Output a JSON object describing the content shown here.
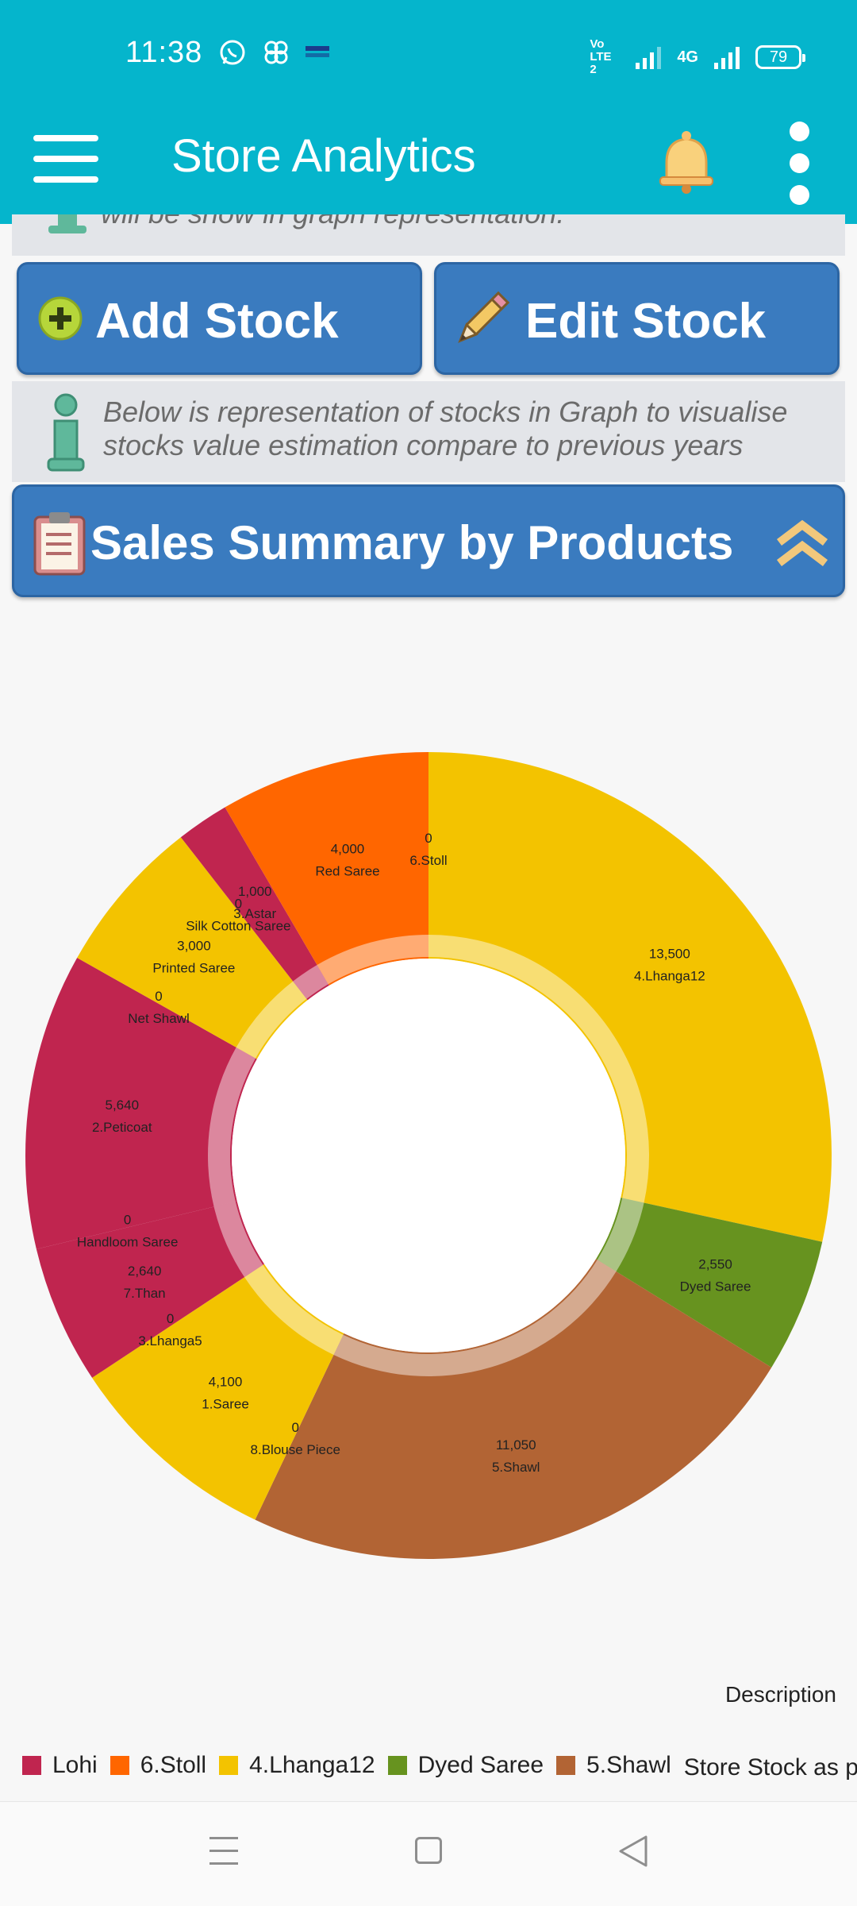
{
  "status_bar": {
    "time": "11:38",
    "left_icons": [
      "whatsapp-icon",
      "pinwheel-icon",
      "paytm-icon"
    ],
    "vo_lte": "Vo LTE 2",
    "network": "4G",
    "battery": "79"
  },
  "app_bar": {
    "title": "Store Analytics",
    "icons": [
      "menu-icon",
      "bell-icon",
      "more-vert-icon"
    ]
  },
  "partial_banner": {
    "text": "will be show in graph representation."
  },
  "buttons": {
    "add_stock": "Add Stock",
    "edit_stock": "Edit Stock"
  },
  "info_banner": {
    "text": "Below is representation of stocks in Graph to visualise stocks value estimation compare to previous years"
  },
  "summary": {
    "title": "Sales Summary by Products"
  },
  "colors": {
    "app_bar": "#05b5cc",
    "button_blue": "#3a7bbf",
    "lohi": "#c0254f",
    "stoll": "#ff6600",
    "lhanga12": "#f3c300",
    "dyed_saree": "#67931f",
    "shawl": "#b26434"
  },
  "chart_data": {
    "type": "pie",
    "donut": true,
    "description": "Description",
    "slices": [
      {
        "label": "6.Stoll",
        "value": 0,
        "color": "#ff6600"
      },
      {
        "label": "4.Lhanga12",
        "value": 13500,
        "color": "#f3c300"
      },
      {
        "label": "Dyed Saree",
        "value": 2550,
        "color": "#67931f"
      },
      {
        "label": "5.Shawl",
        "value": 11050,
        "color": "#b26434"
      },
      {
        "label": "8.Blouse Piece",
        "value": 0,
        "color": "#b26434"
      },
      {
        "label": "1.Saree",
        "value": 4100,
        "color": "#f3c300"
      },
      {
        "label": "3.Lhanga5",
        "value": 0,
        "color": "#f3c300"
      },
      {
        "label": "7.Than",
        "value": 2640,
        "color": "#c0254f"
      },
      {
        "label": "Handloom Saree",
        "value": 0,
        "color": "#c0254f"
      },
      {
        "label": "2.Peticoat",
        "value": 5640,
        "color": "#c0254f"
      },
      {
        "label": "Net Shawl",
        "value": 0,
        "color": "#f3c300"
      },
      {
        "label": "Printed Saree",
        "value": 3000,
        "color": "#f3c300"
      },
      {
        "label": "Silk Cotton Saree",
        "value": 0,
        "color": "#f3c300"
      },
      {
        "label": "3.Astar",
        "value": 1000,
        "color": "#c0254f"
      },
      {
        "label": "Red Saree",
        "value": 4000,
        "color": "#ff6600"
      }
    ],
    "legend": [
      {
        "label": "Lohi",
        "color": "#c0254f"
      },
      {
        "label": "6.Stoll",
        "color": "#ff6600"
      },
      {
        "label": "4.Lhanga12",
        "color": "#f3c300"
      },
      {
        "label": "Dyed Saree",
        "color": "#67931f"
      },
      {
        "label": "5.Shawl",
        "color": "#b26434"
      }
    ],
    "legend_trailing_text": "Store Stock as p"
  }
}
